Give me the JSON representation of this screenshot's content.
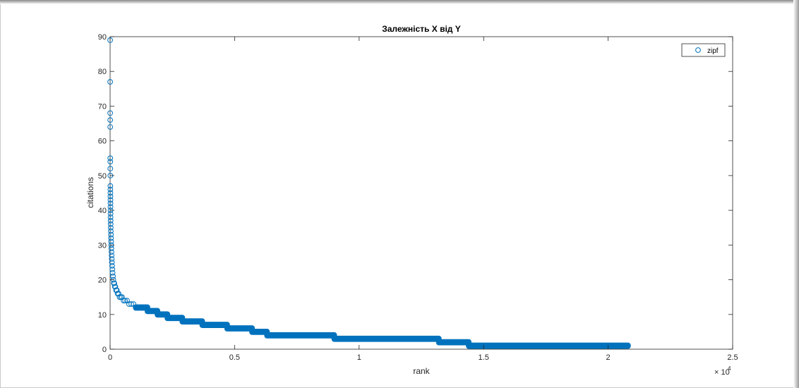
{
  "chart_data": {
    "type": "scatter",
    "title": "Залежність X від Y",
    "xlabel": "rank",
    "ylabel": "citations",
    "xlim": [
      0,
      25000
    ],
    "ylim": [
      0,
      90
    ],
    "x_multiplier_label": "× 10",
    "x_multiplier_exponent": "4",
    "x_ticks": [
      0,
      5000,
      10000,
      15000,
      20000,
      25000
    ],
    "x_tick_labels": [
      "0",
      "0.5",
      "1",
      "1.5",
      "2",
      "2.5"
    ],
    "y_ticks": [
      0,
      10,
      20,
      30,
      40,
      50,
      60,
      70,
      80,
      90
    ],
    "y_tick_labels": [
      "0",
      "10",
      "20",
      "30",
      "40",
      "50",
      "60",
      "70",
      "80",
      "90"
    ],
    "grid": false,
    "legend": {
      "position": "top-right",
      "entries": [
        "zipf"
      ]
    },
    "series": [
      {
        "name": "zipf",
        "color": "#0072bd",
        "marker": "circle",
        "head_points": {
          "x": [
            1,
            2,
            3,
            4,
            5,
            6,
            7,
            8,
            9,
            10,
            11,
            12,
            13,
            14,
            15,
            16,
            17,
            18,
            19,
            20,
            22,
            25,
            28,
            32,
            36,
            40,
            45,
            50,
            55,
            60,
            66,
            72,
            80,
            90,
            100,
            115,
            130,
            150,
            170,
            190,
            210,
            240,
            270,
            300,
            340,
            380,
            430,
            480,
            540,
            600,
            680,
            760,
            850,
            940,
            1030
          ],
          "y": [
            89,
            77,
            68,
            66,
            64,
            55,
            54,
            52,
            50,
            47,
            46,
            45,
            44,
            43,
            42,
            41,
            40,
            39,
            38,
            37,
            36,
            35,
            34,
            33,
            32,
            31,
            30,
            29,
            28,
            27,
            26,
            25,
            24,
            23,
            22,
            21,
            20,
            19,
            19,
            18,
            18,
            17,
            17,
            16,
            16,
            15,
            15,
            15,
            14,
            14,
            14,
            13,
            13,
            13,
            12
          ]
        },
        "plateaus": [
          {
            "y": 12,
            "x_start": 1030,
            "x_end": 1500
          },
          {
            "y": 11,
            "x_start": 1500,
            "x_end": 1900
          },
          {
            "y": 10,
            "x_start": 1900,
            "x_end": 2300
          },
          {
            "y": 9,
            "x_start": 2300,
            "x_end": 2900
          },
          {
            "y": 8,
            "x_start": 2900,
            "x_end": 3700
          },
          {
            "y": 7,
            "x_start": 3700,
            "x_end": 4700
          },
          {
            "y": 6,
            "x_start": 4700,
            "x_end": 5700
          },
          {
            "y": 5,
            "x_start": 5700,
            "x_end": 6300
          },
          {
            "y": 4,
            "x_start": 6300,
            "x_end": 9000
          },
          {
            "y": 3,
            "x_start": 9000,
            "x_end": 13200
          },
          {
            "y": 2,
            "x_start": 13200,
            "x_end": 14400
          },
          {
            "y": 1,
            "x_start": 14400,
            "x_end": 20800
          }
        ]
      }
    ]
  }
}
